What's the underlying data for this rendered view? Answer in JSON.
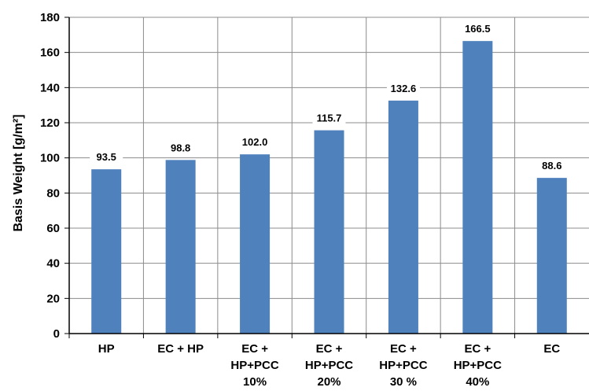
{
  "chart_data": {
    "type": "bar",
    "title": "",
    "xlabel": "",
    "ylabel": "Basis Weight  [g/m²]",
    "ylim": [
      0,
      180
    ],
    "yticks": [
      0,
      20,
      40,
      60,
      80,
      100,
      120,
      140,
      160,
      180
    ],
    "ytick_labels": [
      "0",
      "20",
      "40",
      "60",
      "80",
      "100",
      "120",
      "140",
      "160",
      "180"
    ],
    "grid": true,
    "legend": "none",
    "categories": [
      [
        "HP"
      ],
      [
        "EC + HP"
      ],
      [
        "EC +",
        "HP+PCC",
        "10%"
      ],
      [
        "EC +",
        "HP+PCC",
        "20%"
      ],
      [
        "EC +",
        "HP+PCC",
        "30 %"
      ],
      [
        "EC +",
        "HP+PCC",
        "40%"
      ],
      [
        "EC"
      ]
    ],
    "values": [
      93.5,
      98.8,
      102.0,
      115.7,
      132.6,
      166.5,
      88.6
    ],
    "value_labels": [
      "93.5",
      "98.8",
      "102.0",
      "115.7",
      "132.6",
      "166.5",
      "88.6"
    ],
    "bar_color": "#4f81bd",
    "grid_color": "#8c8c8c"
  }
}
